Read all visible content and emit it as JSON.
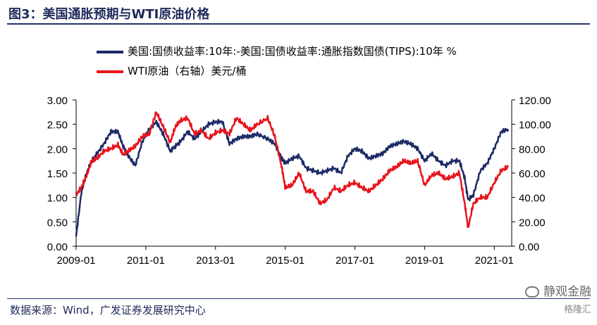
{
  "title": "图3：美国通胀预期与WTI原油价格",
  "source": "数据来源：Wind，广发证券发展研究中心",
  "watermark": {
    "line1": "静观金融",
    "line2": "格隆汇"
  },
  "colors": {
    "breakeven": "#1c2a66",
    "wti": "#e8141c",
    "title": "#1f2a5a"
  },
  "chart_data": {
    "type": "line",
    "title": "美国通胀预期与WTI原油价格",
    "xlabel": "",
    "ylabel": "",
    "x_ticks": [
      "2009-01",
      "2011-01",
      "2013-01",
      "2015-01",
      "2017-01",
      "2019-01",
      "2021-01"
    ],
    "x_range": [
      2009.0,
      2021.5
    ],
    "y_left": {
      "range": [
        0,
        3
      ],
      "ticks": [
        "0.00",
        "0.50",
        "1.00",
        "1.50",
        "2.00",
        "2.50",
        "3.00"
      ]
    },
    "y_right": {
      "range": [
        0,
        120
      ],
      "ticks": [
        "0.00",
        "20.00",
        "40.00",
        "60.00",
        "80.00",
        "100.00",
        "120.00"
      ]
    },
    "series": [
      {
        "name": "美国:国债收益率:10年:-美国:国债收益率:通胀指数国债(TIPS):10年 %",
        "axis": "left",
        "x": [
          2009.0,
          2009.15,
          2009.3,
          2009.45,
          2009.6,
          2009.8,
          2010.0,
          2010.2,
          2010.35,
          2010.5,
          2010.7,
          2010.9,
          2011.1,
          2011.3,
          2011.5,
          2011.7,
          2011.85,
          2012.0,
          2012.2,
          2012.4,
          2012.6,
          2012.8,
          2013.0,
          2013.2,
          2013.4,
          2013.6,
          2013.8,
          2014.0,
          2014.2,
          2014.5,
          2014.7,
          2014.9,
          2015.0,
          2015.2,
          2015.4,
          2015.6,
          2015.8,
          2016.0,
          2016.2,
          2016.4,
          2016.6,
          2016.8,
          2017.0,
          2017.2,
          2017.4,
          2017.6,
          2017.8,
          2018.0,
          2018.2,
          2018.4,
          2018.6,
          2018.8,
          2019.0,
          2019.2,
          2019.4,
          2019.6,
          2019.8,
          2020.0,
          2020.15,
          2020.25,
          2020.4,
          2020.6,
          2020.8,
          2021.0,
          2021.2,
          2021.4
        ],
        "values": [
          0.2,
          1.1,
          1.5,
          1.75,
          1.9,
          2.1,
          2.35,
          2.35,
          2.05,
          1.85,
          1.65,
          2.15,
          2.4,
          2.55,
          2.3,
          1.95,
          2.05,
          2.15,
          2.35,
          2.2,
          2.35,
          2.5,
          2.55,
          2.55,
          2.1,
          2.2,
          2.25,
          2.25,
          2.3,
          2.2,
          2.1,
          1.8,
          1.7,
          1.8,
          1.85,
          1.6,
          1.55,
          1.5,
          1.55,
          1.6,
          1.5,
          1.85,
          2.0,
          1.95,
          1.8,
          1.85,
          1.9,
          2.05,
          2.1,
          2.15,
          2.1,
          2.0,
          1.75,
          1.9,
          1.75,
          1.65,
          1.75,
          1.75,
          1.4,
          0.95,
          1.05,
          1.55,
          1.7,
          2.0,
          2.35,
          2.4
        ]
      },
      {
        "name": "WTI原油（右轴）美元/桶",
        "axis": "right",
        "x": [
          2009.0,
          2009.15,
          2009.3,
          2009.45,
          2009.6,
          2009.8,
          2010.0,
          2010.2,
          2010.35,
          2010.5,
          2010.7,
          2010.9,
          2011.1,
          2011.3,
          2011.5,
          2011.7,
          2011.85,
          2012.0,
          2012.2,
          2012.4,
          2012.6,
          2012.8,
          2013.0,
          2013.2,
          2013.4,
          2013.6,
          2013.8,
          2014.0,
          2014.2,
          2014.5,
          2014.7,
          2014.9,
          2015.0,
          2015.2,
          2015.4,
          2015.6,
          2015.8,
          2016.0,
          2016.2,
          2016.4,
          2016.6,
          2016.8,
          2017.0,
          2017.2,
          2017.4,
          2017.6,
          2017.8,
          2018.0,
          2018.2,
          2018.4,
          2018.6,
          2018.8,
          2019.0,
          2019.2,
          2019.4,
          2019.6,
          2019.8,
          2020.0,
          2020.15,
          2020.25,
          2020.4,
          2020.6,
          2020.8,
          2021.0,
          2021.2,
          2021.4
        ],
        "values": [
          42,
          48,
          58,
          70,
          72,
          78,
          80,
          83,
          75,
          78,
          82,
          90,
          92,
          110,
          98,
          85,
          98,
          103,
          105,
          92,
          95,
          88,
          93,
          95,
          92,
          105,
          100,
          95,
          100,
          105,
          90,
          65,
          48,
          50,
          60,
          45,
          45,
          35,
          38,
          48,
          45,
          50,
          52,
          48,
          45,
          50,
          55,
          62,
          65,
          70,
          68,
          70,
          50,
          58,
          60,
          55,
          57,
          60,
          35,
          15,
          35,
          40,
          40,
          52,
          62,
          65
        ]
      }
    ]
  }
}
